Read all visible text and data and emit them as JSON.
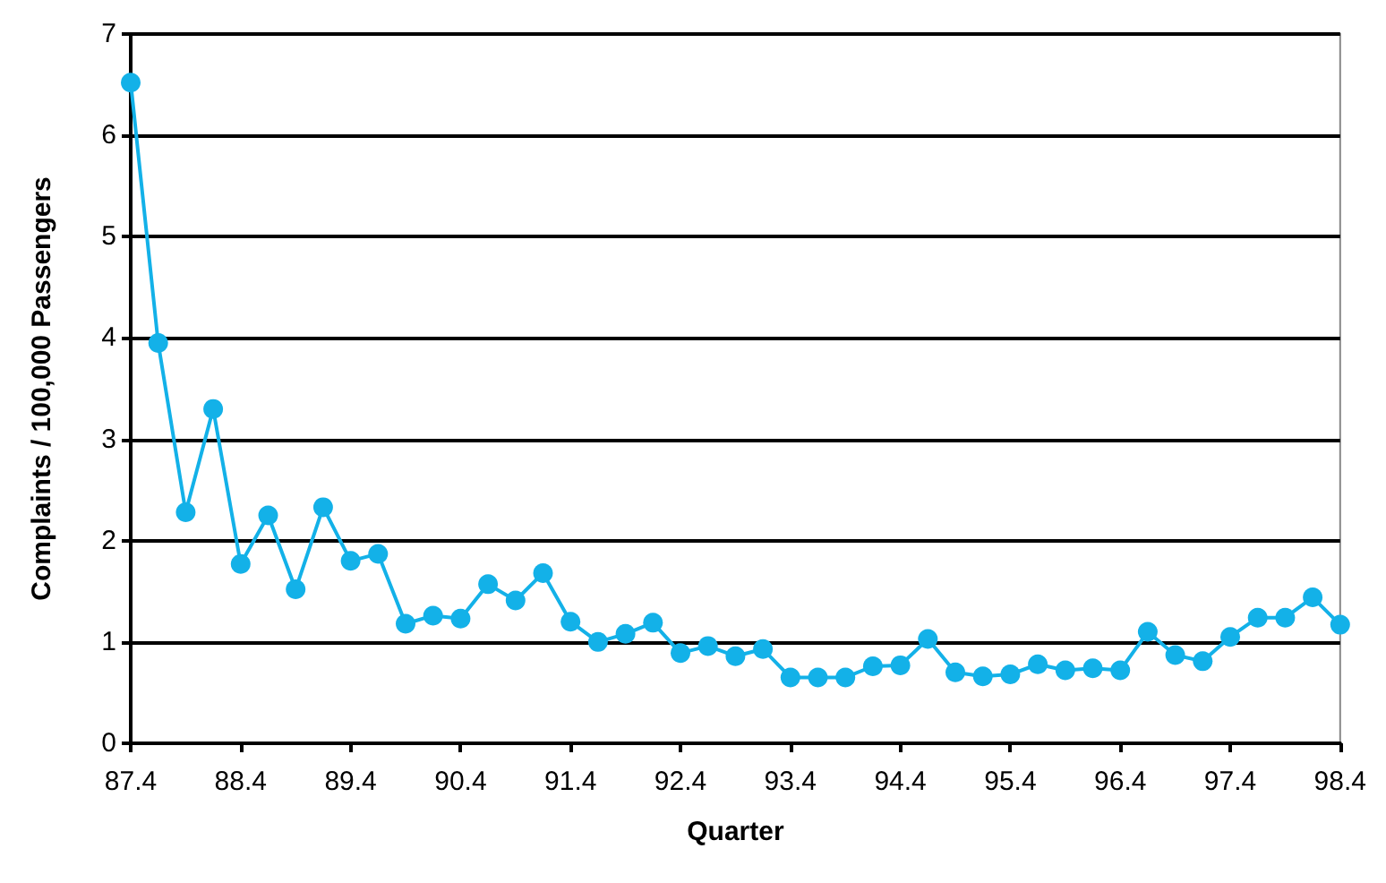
{
  "chart_data": {
    "type": "line",
    "xlabel": "Quarter",
    "ylabel": "Complaints / 100,000 Passengers",
    "categories": [
      "87.4",
      null,
      null,
      null,
      "88.4",
      null,
      null,
      null,
      "89.4",
      null,
      null,
      null,
      "90.4",
      null,
      null,
      null,
      "91.4",
      null,
      null,
      null,
      "92.4",
      null,
      null,
      null,
      "93.4",
      null,
      null,
      null,
      "94.4",
      null,
      null,
      null,
      "95.4",
      null,
      null,
      null,
      "96.4",
      null,
      null,
      null,
      "97.4",
      null,
      null,
      null,
      "98.4"
    ],
    "series": [
      {
        "color": "#13b1e8",
        "values": [
          6.52,
          3.95,
          2.28,
          3.3,
          1.77,
          2.25,
          1.52,
          2.33,
          1.8,
          1.87,
          1.18,
          1.26,
          1.23,
          1.57,
          1.41,
          1.68,
          1.2,
          1.0,
          1.08,
          1.19,
          0.89,
          0.96,
          0.86,
          0.93,
          0.65,
          0.65,
          0.65,
          0.76,
          0.77,
          1.03,
          0.7,
          0.66,
          0.68,
          0.78,
          0.72,
          0.74,
          0.72,
          1.1,
          0.87,
          0.81,
          1.05,
          1.24,
          1.24,
          1.44,
          1.17
        ]
      }
    ],
    "ylim": [
      0,
      7
    ],
    "yticks": [
      0,
      1,
      2,
      3,
      4,
      5,
      6,
      7
    ],
    "grid": "y",
    "marker": "circle",
    "line_style": "solid"
  }
}
